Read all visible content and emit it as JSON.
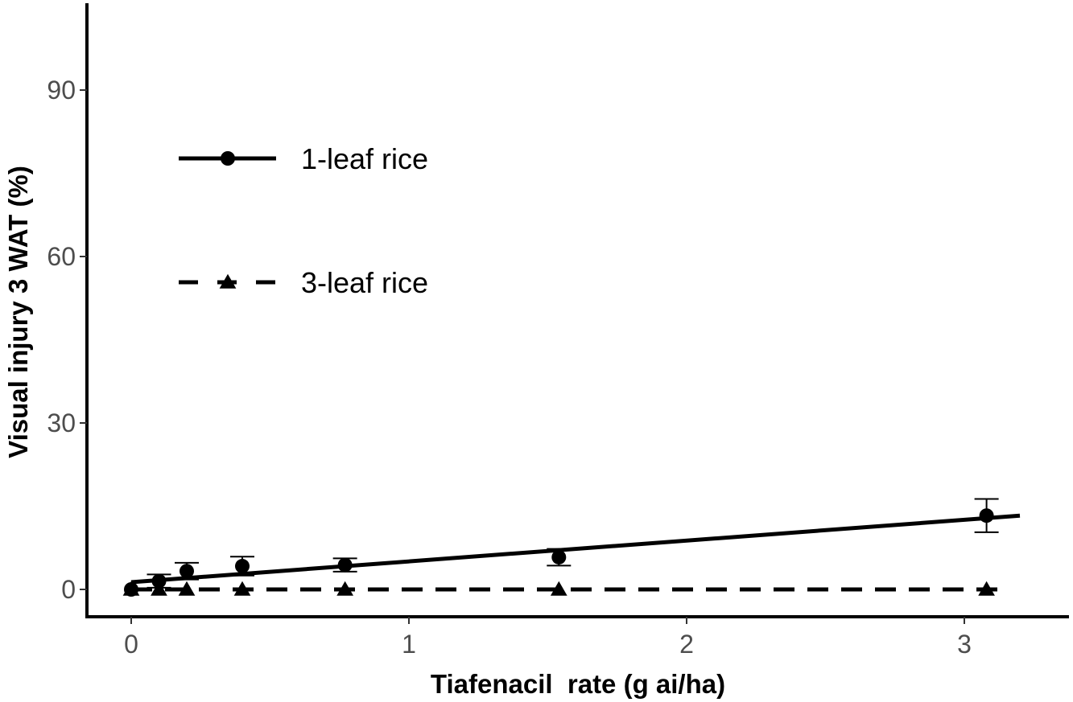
{
  "chart_data": {
    "type": "line",
    "title": "",
    "xlabel": "Tiafenacil  rate (g ai/ha)",
    "ylabel": "Visual injury 3 WAT (%)",
    "xlim": [
      -0.16,
      3.4
    ],
    "ylim": [
      -5,
      105
    ],
    "xticks": [
      0,
      1,
      2,
      3
    ],
    "xtick_labels": [
      "0",
      "1",
      "2",
      "3"
    ],
    "yticks": [
      0,
      30,
      60,
      90
    ],
    "ytick_labels": [
      "0",
      "30",
      "60",
      "90"
    ],
    "grid": false,
    "legend_position": "top-left",
    "series": [
      {
        "name": "1-leaf rice",
        "marker": "circle",
        "line_style": "solid",
        "color": "#000000",
        "x": [
          0,
          0.1,
          0.2,
          0.4,
          0.77,
          1.54,
          3.08
        ],
        "y": [
          0.0,
          1.5,
          3.3,
          4.2,
          4.4,
          5.8,
          13.3
        ],
        "error": [
          0.0,
          1.2,
          1.5,
          1.7,
          1.2,
          1.5,
          3.0
        ],
        "fit": {
          "x": [
            0,
            3.2
          ],
          "y": [
            1.3,
            13.3
          ]
        }
      },
      {
        "name": "3-leaf rice",
        "marker": "triangle",
        "line_style": "dashed",
        "color": "#000000",
        "x": [
          0,
          0.1,
          0.2,
          0.4,
          0.77,
          1.54,
          3.08
        ],
        "y": [
          0,
          0,
          0,
          0,
          0,
          0,
          0
        ],
        "error": [
          0,
          0,
          0,
          0,
          0,
          0,
          0
        ],
        "fit": {
          "x": [
            0,
            3.15
          ],
          "y": [
            0,
            0
          ]
        }
      }
    ]
  }
}
